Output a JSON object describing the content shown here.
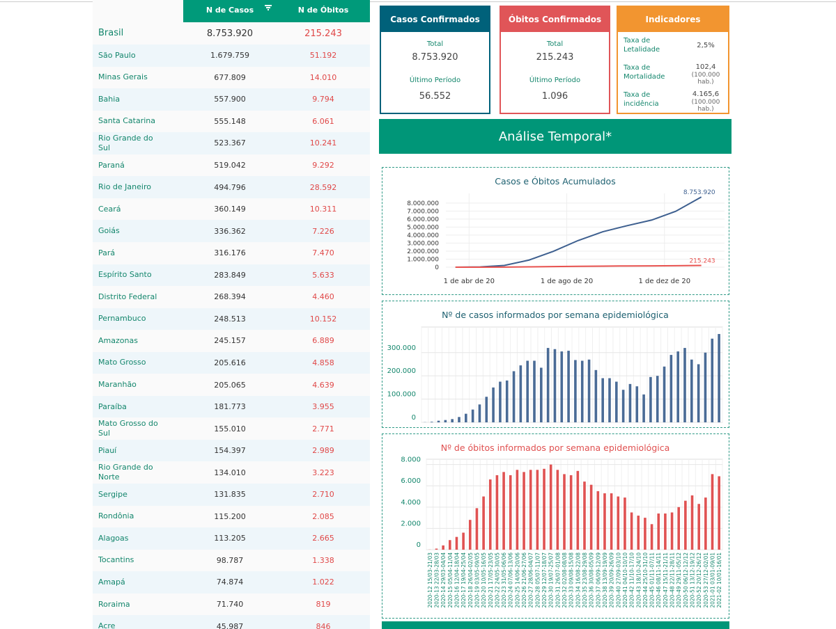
{
  "table": {
    "headers": [
      "N de Casos",
      "N de Óbitos"
    ],
    "rows": [
      [
        "Brasil",
        "8.753.920",
        "215.243"
      ],
      [
        "São Paulo",
        "1.679.759",
        "51.192"
      ],
      [
        "Minas Gerais",
        "677.809",
        "14.010"
      ],
      [
        "Bahia",
        "557.900",
        "9.794"
      ],
      [
        "Santa Catarina",
        "555.148",
        "6.061"
      ],
      [
        "Rio Grande do Sul",
        "523.367",
        "10.241"
      ],
      [
        "Paraná",
        "519.042",
        "9.292"
      ],
      [
        "Rio de Janeiro",
        "494.796",
        "28.592"
      ],
      [
        "Ceará",
        "360.149",
        "10.311"
      ],
      [
        "Goiás",
        "336.362",
        "7.226"
      ],
      [
        "Pará",
        "316.176",
        "7.470"
      ],
      [
        "Espírito Santo",
        "283.849",
        "5.633"
      ],
      [
        "Distrito Federal",
        "268.394",
        "4.460"
      ],
      [
        "Pernambuco",
        "248.513",
        "10.152"
      ],
      [
        "Amazonas",
        "245.157",
        "6.889"
      ],
      [
        "Mato Grosso",
        "205.616",
        "4.858"
      ],
      [
        "Maranhão",
        "205.065",
        "4.639"
      ],
      [
        "Paraíba",
        "181.773",
        "3.955"
      ],
      [
        "Mato Grosso do Sul",
        "155.010",
        "2.771"
      ],
      [
        "Piauí",
        "154.397",
        "2.989"
      ],
      [
        "Rio Grande do Norte",
        "134.010",
        "3.223"
      ],
      [
        "Sergipe",
        "131.835",
        "2.710"
      ],
      [
        "Rondônia",
        "115.200",
        "2.085"
      ],
      [
        "Alagoas",
        "113.205",
        "2.665"
      ],
      [
        "Tocantins",
        "98.787",
        "1.338"
      ],
      [
        "Amapá",
        "74.874",
        "1.022"
      ],
      [
        "Roraima",
        "71.740",
        "819"
      ],
      [
        "Acre",
        "45.987",
        "846"
      ]
    ]
  },
  "cards": [
    {
      "title": "Casos Confirmados",
      "total_label": "Total",
      "total": "8.753.920",
      "period_label": "Último Período",
      "period": "56.552"
    },
    {
      "title": "Óbitos Confirmados",
      "total_label": "Total",
      "total": "215.243",
      "period_label": "Último Período",
      "period": "1.096"
    }
  ],
  "indicators": {
    "title": "Indicadores",
    "items": [
      {
        "label": "Taxa de Letalidade",
        "value": "2,5%"
      },
      {
        "label": "Taxa de Mortalidade",
        "value": "102,4",
        "unit": "(100.000 hab.)"
      },
      {
        "label": "Taxa de incidência",
        "value": "4.165,6",
        "unit": "(100.000 hab.)"
      }
    ]
  },
  "banner": "Análise Temporal*",
  "chart_data": [
    {
      "type": "line",
      "title": "Casos e Óbitos Acumulados",
      "x": [
        "2020-03-15",
        "2020-04-15",
        "2020-05-15",
        "2020-06-15",
        "2020-07-15",
        "2020-08-15",
        "2020-09-15",
        "2020-10-15",
        "2020-11-15",
        "2020-12-15",
        "2021-01-16"
      ],
      "series": [
        {
          "name": "Casos",
          "color": "#3d5f8f",
          "values": [
            200,
            28000,
            220000,
            890000,
            1970000,
            3320000,
            4420000,
            5170000,
            5880000,
            6970000,
            8753920
          ],
          "value_labels": [
            null,
            null,
            null,
            null,
            null,
            null,
            null,
            null,
            null,
            null,
            "8.753.920"
          ]
        },
        {
          "name": "Óbitos",
          "color": "#e8524f",
          "values": [
            0,
            1700,
            15000,
            44000,
            76000,
            107000,
            134000,
            153000,
            166000,
            182000,
            215243
          ],
          "value_labels": [
            null,
            null,
            null,
            null,
            null,
            null,
            null,
            null,
            null,
            null,
            "215.243"
          ]
        }
      ],
      "xlim": [
        "2020-03-03",
        "2021-02-14"
      ],
      "xticks": [
        {
          "value": "2020-04-01",
          "label": "1 de abr de 20"
        },
        {
          "value": "2020-08-01",
          "label": "1 de ago de 20"
        },
        {
          "value": "2020-12-01",
          "label": "1 de dez de 20"
        }
      ],
      "ylim": [
        0,
        9200000
      ],
      "yticks": [
        0,
        {
          "value": 1000000,
          "label": "1.000.000"
        },
        {
          "value": 2000000,
          "label": "2.000.000"
        },
        {
          "value": 3000000,
          "label": "3.000.000"
        },
        {
          "value": 4000000,
          "label": "4.000.000"
        },
        {
          "value": 5000000,
          "label": "5.000.000"
        },
        {
          "value": 6000000,
          "label": "6.000.000"
        },
        {
          "value": 7000000,
          "label": "7.000.000"
        },
        {
          "value": 8000000,
          "label": "8.000.000"
        }
      ],
      "grid": true
    },
    {
      "type": "bar",
      "title": "Nº de casos informados por semana epidemiológica",
      "color": "#4a6b96",
      "values": [
        700,
        2500,
        7000,
        10000,
        14000,
        23000,
        37000,
        55000,
        77000,
        110000,
        150000,
        175000,
        180000,
        220000,
        245000,
        265000,
        265000,
        235000,
        320000,
        315000,
        305000,
        308000,
        268000,
        265000,
        270000,
        225000,
        190000,
        190000,
        175000,
        140000,
        165000,
        155000,
        120000,
        195000,
        200000,
        240000,
        290000,
        305000,
        320000,
        270000,
        250000,
        300000,
        360000,
        380000
      ],
      "ylim": [
        0,
        410000
      ],
      "yticks": [
        0,
        {
          "value": 100000,
          "label": "100.000"
        },
        {
          "value": 200000,
          "label": "200.000"
        },
        {
          "value": 300000,
          "label": "300.000"
        }
      ],
      "grid": true
    },
    {
      "type": "bar",
      "title": "Nº de óbitos informados por semana epidemiológica",
      "color": "#e05252",
      "categories": [
        "2020-12 15/03-21/03",
        "2020-13 22/03-28/03",
        "2020-14 29/03-04/04",
        "2020-15 05/04-11/04",
        "2020-16 12/04-18/04",
        "2020-17 19/04-25/04",
        "2020-18 26/04-02/05",
        "2020-19 03/05-09/05",
        "2020-20 10/05-16/05",
        "2020-21 17/05-23/05",
        "2020-22 24/05-30/05",
        "2020-23 31/05-06/06",
        "2020-24 07/06-13/06",
        "2020-25 14/06-20/06",
        "2020-26 21/06-27/06",
        "2020-27 28/06-04/07",
        "2020-28 05/07-11/07",
        "2020-29 12/07-18/07",
        "2020-30 19/07-25/07",
        "2020-31 26/07-01/08",
        "2020-32 02/08-08/08",
        "2020-33 09/08-15/08",
        "2020-34 16/08-22/08",
        "2020-35 23/08-29/08",
        "2020-36 30/08-05/09",
        "2020-37 06/09-12/09",
        "2020-38 13/09-19/09",
        "2020-39 20/09-26/09",
        "2020-40 27/09-03/10",
        "2020-41 04/10-10/10",
        "2020-42 11/10-17/10",
        "2020-43 18/10-24/10",
        "2020-44 25/10-31/10",
        "2020-45 01/11-07/11",
        "2020-46 08/11-14/11",
        "2020-47 15/11-21/11",
        "2020-48 22/11-28/11",
        "2020-49 29/11-05/12",
        "2020-50 06/12-12/12",
        "2020-51 13/12-19/12",
        "2020-52 20/12-26/12",
        "2020-53 27/12-02/01",
        "2021-01 03/01-09/01",
        "2021-02 10/01-16/01"
      ],
      "values": [
        10,
        100,
        400,
        900,
        1200,
        1600,
        2800,
        3900,
        5000,
        6600,
        7000,
        7300,
        7000,
        7500,
        7300,
        7500,
        7500,
        7600,
        8000,
        7500,
        7100,
        7000,
        7400,
        6400,
        6100,
        5500,
        5300,
        5300,
        5000,
        4900,
        3500,
        3200,
        3000,
        2400,
        3400,
        3400,
        3500,
        4000,
        4600,
        5100,
        4300,
        4900,
        7100,
        6900
      ],
      "ylim": [
        0,
        8500
      ],
      "yticks": [
        0,
        {
          "value": 2000,
          "label": "2.000"
        },
        {
          "value": 4000,
          "label": "4.000"
        },
        {
          "value": 6000,
          "label": "6.000"
        },
        {
          "value": 8000,
          "label": "8.000"
        }
      ],
      "grid": true
    }
  ]
}
